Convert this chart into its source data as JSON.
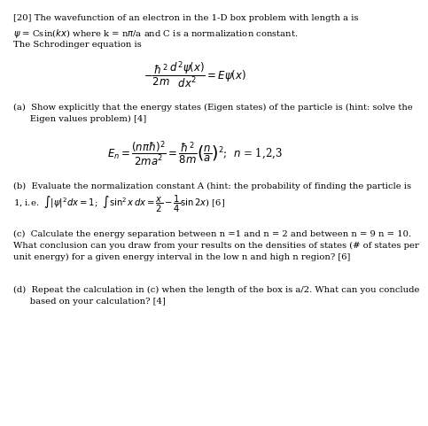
{
  "background_color": "#ffffff",
  "line1": "[20] The wavefunction of an electron in the 1-D box problem with length a is",
  "line2a": "$\\psi$ = Csin(",
  "line2b": "$kx$",
  "line2": "$\\psi$ = Csin($kx$) where k = n$\\pi$/a and C is a normalization constant.",
  "line3": "The Schrodinger equation is",
  "schrodinger_eq": "$-\\dfrac{\\hbar^2}{2m}\\dfrac{d^2\\psi(x)}{dx^2} = E\\psi(x)$",
  "part_a1": "(a)  Show explicitly that the energy states (Eigen states) of the particle is (hint: solve the",
  "part_a2": "      Eigen values problem) [4]",
  "energy_eq": "$E_n = \\dfrac{(n\\pi\\hbar)^2}{2ma^2} = \\dfrac{\\hbar^2}{8m}\\left(\\dfrac{n}{a}\\right)^2$;  $n$ = 1,2,3",
  "part_b1": "(b)  Evaluate the normalization constant A (hint: the probability of finding the particle is",
  "part_b2": "1, i.e.  $\\int |\\psi|^2 dx = 1$;  $\\int \\sin^2 x\\,dx = \\dfrac{x}{2} - \\dfrac{1}{4}\\sin 2x$) [6]",
  "part_c1": "(c)  Calculate the energy separation between n =1 and n = 2 and between n = 9 n = 10.",
  "part_c2": "What conclusion can you draw from your results on the densities of states (# of states per",
  "part_c3": "unit energy) for a given energy interval in the low n and high n region? [6]",
  "part_d1": "(d)  Repeat the calculation in (c) when the length of the box is a/2. What can you conclude",
  "part_d2": "      based on your calculation? [4]",
  "fs": 7.2,
  "fs_eq": 8.5
}
